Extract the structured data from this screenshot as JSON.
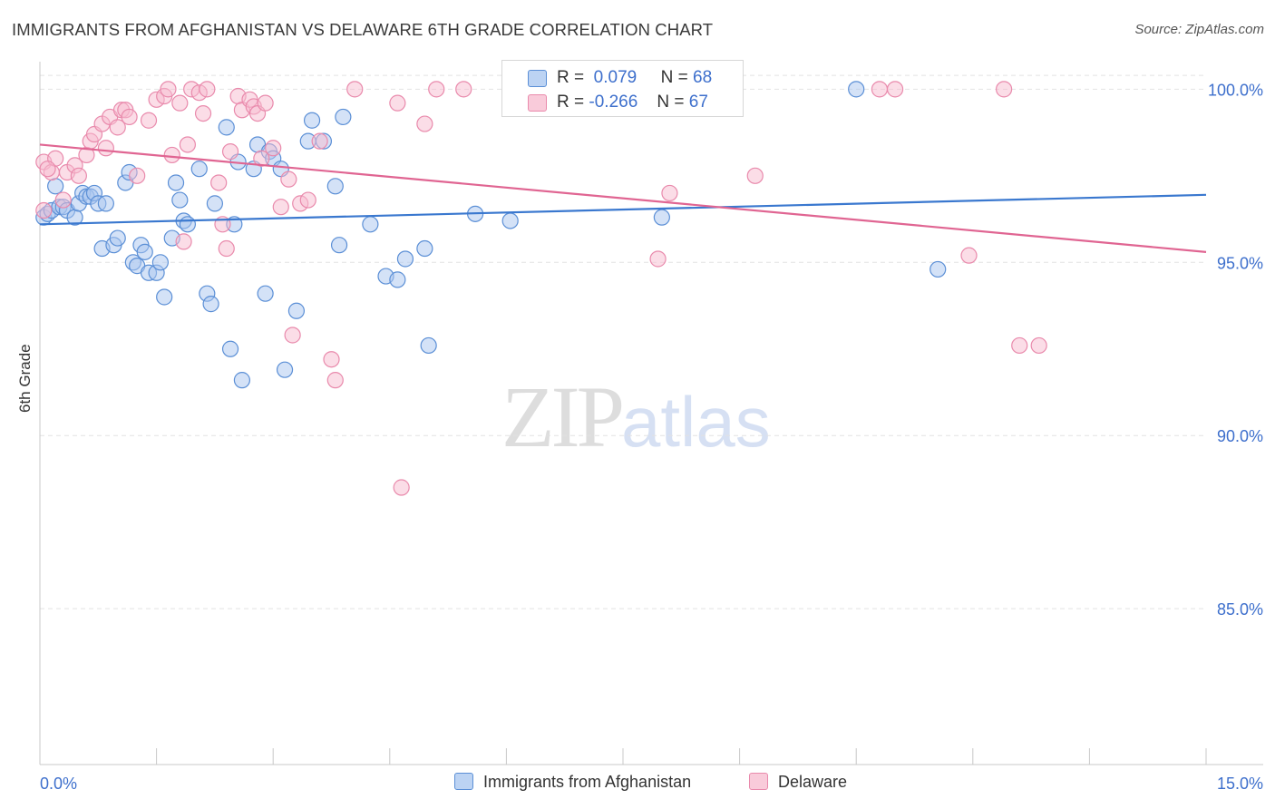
{
  "title": "IMMIGRANTS FROM AFGHANISTAN VS DELAWARE 6TH GRADE CORRELATION CHART",
  "source": "Source: ZipAtlas.com",
  "watermark": {
    "zip": "ZIP",
    "atlas": "atlas"
  },
  "legend_top": [
    {
      "r_label": "R =",
      "r_value": "0.079",
      "n_label": "N =",
      "n_value": "68"
    },
    {
      "r_label": "R =",
      "r_value": "-0.266",
      "n_label": "N =",
      "n_value": "67"
    }
  ],
  "legend_bottom": [
    "Immigrants from Afghanistan",
    "Delaware"
  ],
  "colors": {
    "blue_fill": "#a9c6f0",
    "blue_stroke": "#5b8fd6",
    "blue_line": "#3a78cf",
    "pink_fill": "#f7bcd0",
    "pink_stroke": "#e98aac",
    "pink_line": "#e06592",
    "tick_label": "#3d6fcc",
    "grid": "#e2e2e2"
  },
  "chart_data": {
    "type": "scatter",
    "title": "IMMIGRANTS FROM AFGHANISTAN VS DELAWARE 6TH GRADE CORRELATION CHART",
    "ylabel": "6th Grade",
    "xlabel": "",
    "xlim": [
      0,
      15
    ],
    "ylim": [
      80.5,
      100.9
    ],
    "x_tick_labels": [
      "0.0%",
      "15.0%"
    ],
    "y_ticks": [
      85,
      90,
      95,
      100
    ],
    "y_tick_labels": [
      "85.0%",
      "90.0%",
      "95.0%",
      "100.0%"
    ],
    "grid": "horizontal dashed",
    "legend": "top-center and bottom-center",
    "series": [
      {
        "name": "Immigrants from Afghanistan",
        "color": "#5b8fd6",
        "trend": {
          "x": [
            0,
            15
          ],
          "y": [
            96.1,
            96.95
          ]
        },
        "points": [
          [
            0.05,
            96.3
          ],
          [
            0.1,
            96.4
          ],
          [
            0.15,
            96.5
          ],
          [
            0.2,
            97.2
          ],
          [
            0.25,
            96.6
          ],
          [
            0.3,
            96.6
          ],
          [
            0.35,
            96.5
          ],
          [
            0.45,
            96.3
          ],
          [
            0.5,
            96.7
          ],
          [
            0.55,
            97.0
          ],
          [
            0.6,
            96.9
          ],
          [
            0.65,
            96.9
          ],
          [
            0.7,
            97.0
          ],
          [
            0.75,
            96.7
          ],
          [
            0.85,
            96.7
          ],
          [
            0.8,
            95.4
          ],
          [
            0.95,
            95.5
          ],
          [
            1.0,
            95.7
          ],
          [
            1.1,
            97.3
          ],
          [
            1.15,
            97.6
          ],
          [
            1.2,
            95.0
          ],
          [
            1.25,
            94.9
          ],
          [
            1.3,
            95.5
          ],
          [
            1.35,
            95.3
          ],
          [
            1.4,
            94.7
          ],
          [
            1.5,
            94.7
          ],
          [
            1.55,
            95.0
          ],
          [
            1.6,
            94.0
          ],
          [
            1.7,
            95.7
          ],
          [
            1.75,
            97.3
          ],
          [
            1.8,
            96.8
          ],
          [
            1.85,
            96.2
          ],
          [
            1.9,
            96.1
          ],
          [
            2.05,
            97.7
          ],
          [
            2.15,
            94.1
          ],
          [
            2.2,
            93.8
          ],
          [
            2.25,
            96.7
          ],
          [
            2.4,
            98.9
          ],
          [
            2.45,
            92.5
          ],
          [
            2.5,
            96.1
          ],
          [
            2.55,
            97.9
          ],
          [
            2.6,
            91.6
          ],
          [
            2.75,
            97.7
          ],
          [
            2.8,
            98.4
          ],
          [
            2.9,
            94.1
          ],
          [
            2.95,
            98.2
          ],
          [
            3.0,
            98.0
          ],
          [
            3.1,
            97.7
          ],
          [
            3.15,
            91.9
          ],
          [
            3.3,
            93.6
          ],
          [
            3.45,
            98.5
          ],
          [
            3.5,
            99.1
          ],
          [
            3.65,
            98.5
          ],
          [
            3.8,
            97.2
          ],
          [
            3.85,
            95.5
          ],
          [
            3.9,
            99.2
          ],
          [
            4.25,
            96.1
          ],
          [
            4.45,
            94.6
          ],
          [
            4.6,
            94.5
          ],
          [
            4.7,
            95.1
          ],
          [
            4.95,
            95.4
          ],
          [
            5.0,
            92.6
          ],
          [
            5.6,
            96.4
          ],
          [
            6.05,
            96.2
          ],
          [
            6.75,
            100.0
          ],
          [
            8.0,
            96.3
          ],
          [
            10.5,
            100.0
          ],
          [
            11.55,
            94.8
          ]
        ]
      },
      {
        "name": "Delaware",
        "color": "#e98aac",
        "trend": {
          "x": [
            0,
            15
          ],
          "y": [
            98.4,
            95.3
          ]
        },
        "points": [
          [
            0.05,
            97.9
          ],
          [
            0.15,
            97.6
          ],
          [
            0.2,
            98.0
          ],
          [
            0.3,
            96.8
          ],
          [
            0.35,
            97.6
          ],
          [
            0.45,
            97.8
          ],
          [
            0.5,
            97.5
          ],
          [
            0.6,
            98.1
          ],
          [
            0.65,
            98.5
          ],
          [
            0.7,
            98.7
          ],
          [
            0.8,
            99.0
          ],
          [
            0.85,
            98.3
          ],
          [
            0.9,
            99.2
          ],
          [
            1.0,
            98.9
          ],
          [
            1.05,
            99.4
          ],
          [
            1.1,
            99.4
          ],
          [
            1.15,
            99.2
          ],
          [
            1.25,
            97.5
          ],
          [
            1.4,
            99.1
          ],
          [
            1.5,
            99.7
          ],
          [
            1.6,
            99.8
          ],
          [
            1.65,
            100.0
          ],
          [
            1.7,
            98.1
          ],
          [
            1.8,
            99.6
          ],
          [
            1.85,
            95.6
          ],
          [
            1.9,
            98.4
          ],
          [
            1.95,
            100.0
          ],
          [
            2.05,
            99.9
          ],
          [
            2.1,
            99.3
          ],
          [
            2.15,
            100.0
          ],
          [
            2.3,
            97.3
          ],
          [
            2.35,
            96.1
          ],
          [
            2.4,
            95.4
          ],
          [
            2.45,
            98.2
          ],
          [
            2.55,
            99.8
          ],
          [
            2.6,
            99.4
          ],
          [
            2.7,
            99.7
          ],
          [
            2.75,
            99.5
          ],
          [
            2.8,
            99.3
          ],
          [
            2.85,
            98.0
          ],
          [
            2.9,
            99.6
          ],
          [
            3.0,
            98.3
          ],
          [
            3.1,
            96.6
          ],
          [
            3.2,
            97.4
          ],
          [
            3.25,
            92.9
          ],
          [
            3.35,
            96.7
          ],
          [
            3.45,
            96.8
          ],
          [
            3.6,
            98.5
          ],
          [
            3.75,
            92.2
          ],
          [
            3.8,
            91.6
          ],
          [
            4.05,
            100.0
          ],
          [
            4.6,
            99.6
          ],
          [
            4.65,
            88.5
          ],
          [
            4.95,
            99.0
          ],
          [
            5.1,
            100.0
          ],
          [
            5.45,
            100.0
          ],
          [
            7.95,
            95.1
          ],
          [
            8.1,
            97.0
          ],
          [
            9.2,
            97.5
          ],
          [
            10.8,
            100.0
          ],
          [
            11.0,
            100.0
          ],
          [
            11.95,
            95.2
          ],
          [
            12.4,
            100.0
          ],
          [
            12.6,
            92.6
          ],
          [
            12.85,
            92.6
          ],
          [
            0.05,
            96.5
          ],
          [
            0.1,
            97.7
          ]
        ]
      }
    ]
  }
}
